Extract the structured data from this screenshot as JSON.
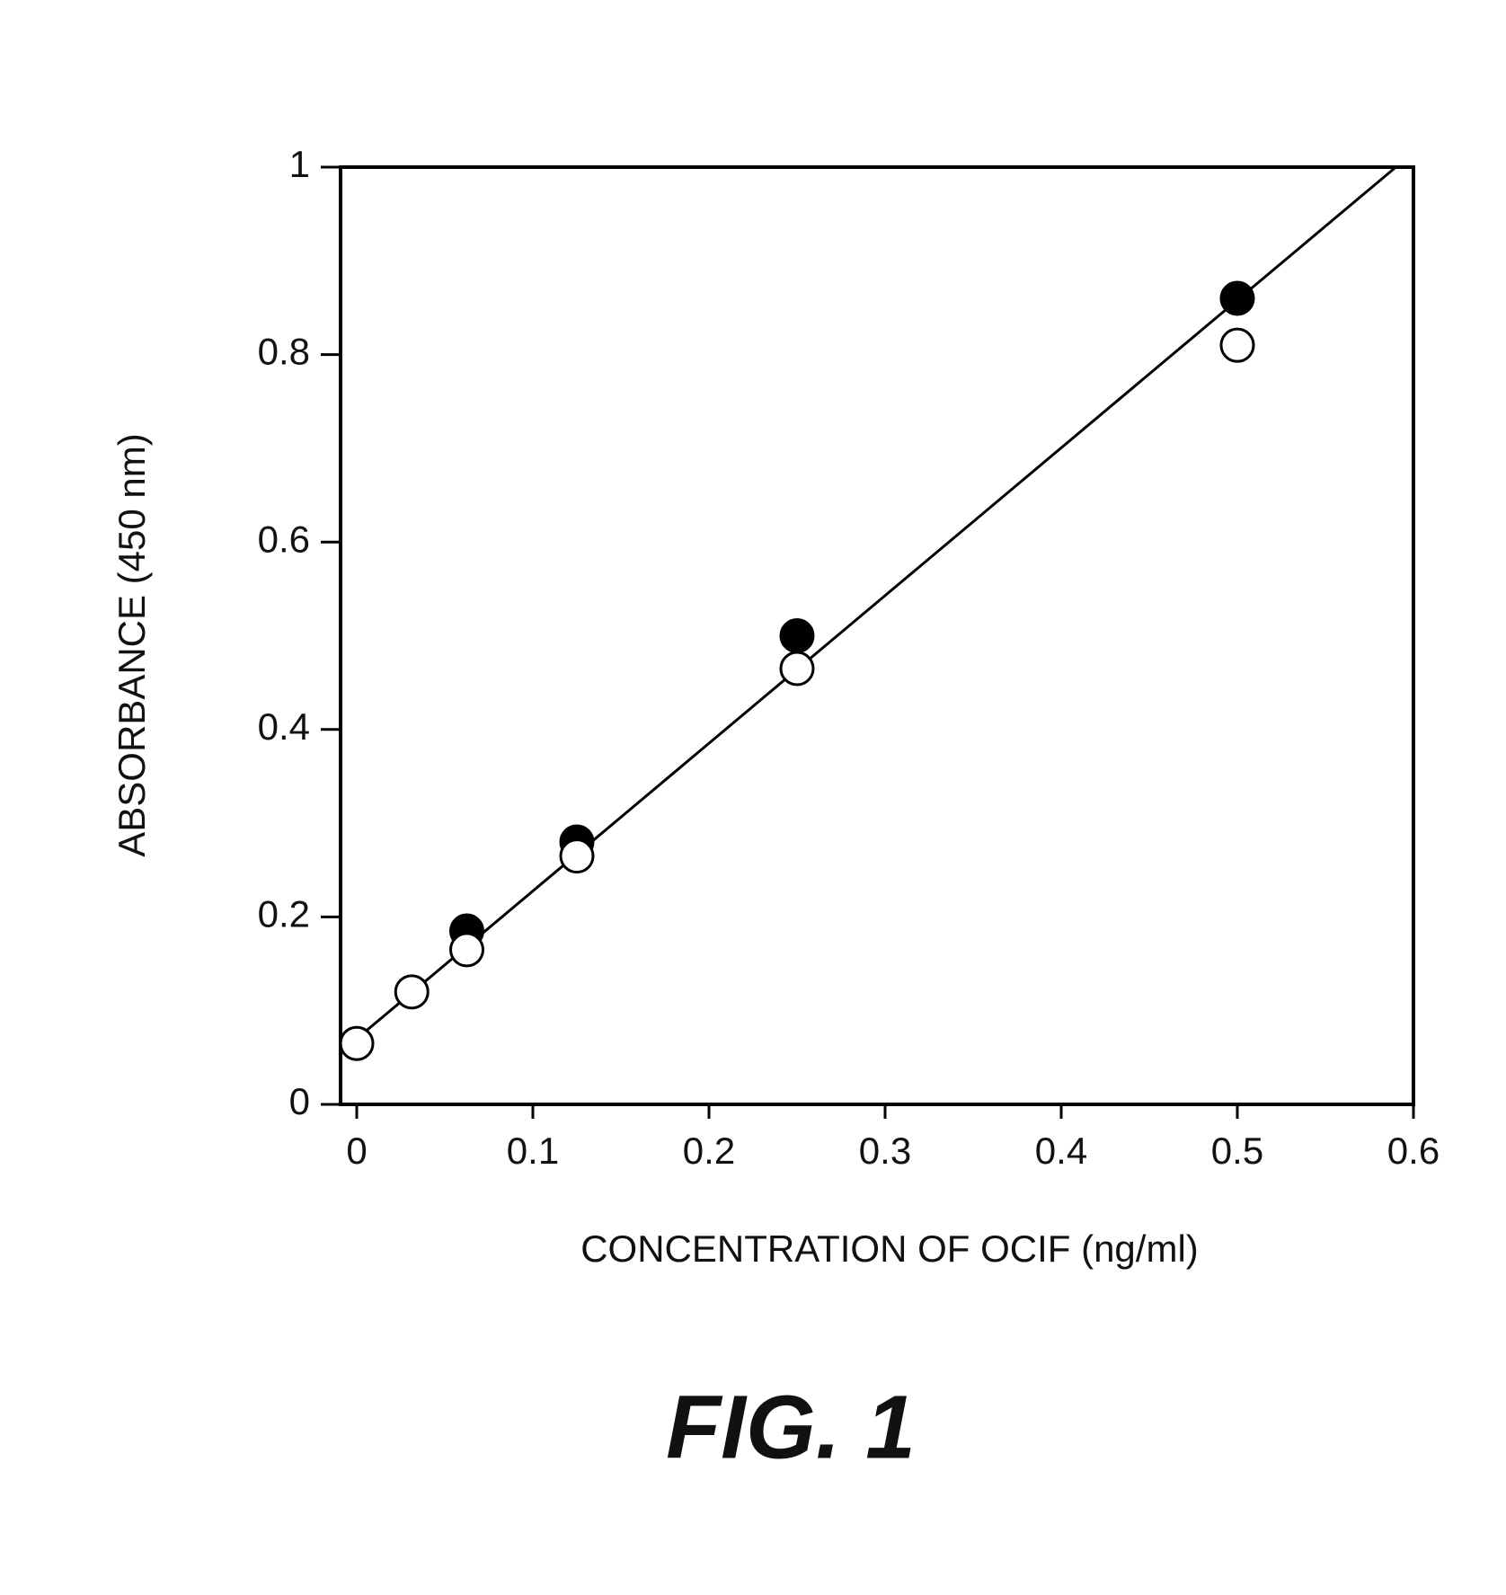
{
  "chart_data": {
    "type": "scatter",
    "xlabel": "CONCENTRATION OF OCIF (ng/ml)",
    "ylabel": "ABSORBANCE (450 nm)",
    "caption": "FIG. 1",
    "xlim": [
      0,
      0.6
    ],
    "ylim": [
      0,
      1
    ],
    "xticks": [
      0,
      0.1,
      0.2,
      0.3,
      0.4,
      0.5,
      0.6
    ],
    "yticks": [
      0,
      0.2,
      0.4,
      0.6,
      0.8,
      1
    ],
    "series": [
      {
        "color": "#000000",
        "fill": "#000000",
        "marker": "circle",
        "x": [
          0.0625,
          0.125,
          0.25,
          0.5
        ],
        "values": [
          0.185,
          0.28,
          0.5,
          0.86
        ]
      },
      {
        "color": "#000000",
        "fill": "#ffffff",
        "marker": "circle",
        "x": [
          0,
          0.03125,
          0.0625,
          0.125,
          0.25,
          0.5
        ],
        "values": [
          0.065,
          0.12,
          0.165,
          0.265,
          0.465,
          0.81
        ]
      },
      {
        "color": "#000000",
        "marker": "line",
        "x": [
          0,
          0.59
        ],
        "values": [
          0.07,
          1.0
        ]
      }
    ]
  }
}
